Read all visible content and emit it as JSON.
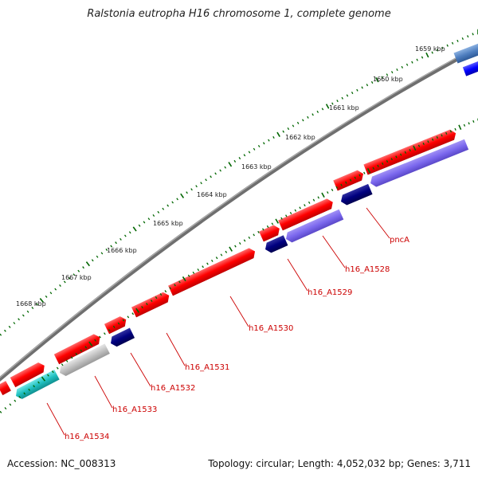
{
  "title": "Ralstonia eutropha H16 chromosome 1, complete genome",
  "footer": {
    "accession": "Accession: NC_008313",
    "summary": "Topology: circular; Length: 4,052,032 bp; Genes: 3,711"
  },
  "colors": {
    "backbone": "#808080",
    "forward_gene": "#ff0000",
    "reverse_gene": "#7b68ee",
    "reverse_dark": "#000080",
    "reverse_grey": "#c0c0c0",
    "reverse_cyan": "#20c0c0",
    "tick_outer": "#006600",
    "tick_inner": "#006600",
    "label": "#cc0000"
  },
  "kbp_labels": [
    "1659 kbp",
    "1660 kbp",
    "1661 kbp",
    "1662 kbp",
    "1663 kbp",
    "1664 kbp",
    "1665 kbp",
    "1666 kbp",
    "1667 kbp",
    "1668 kbp"
  ],
  "gene_labels": [
    "pncA",
    "h16_A1528",
    "h16_A1529",
    "h16_A1530",
    "h16_A1531",
    "h16_A1532",
    "h16_A1533",
    "h16_A1534"
  ]
}
